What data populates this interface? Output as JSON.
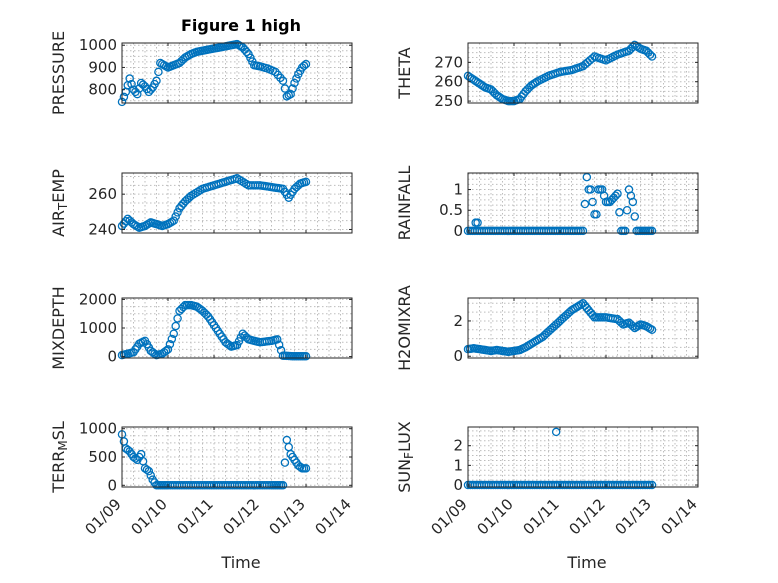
{
  "chart_data": [
    {
      "type": "scatter",
      "title": "Figure 1 high",
      "ylabel": "PRESSURE",
      "xlabel": "",
      "xlim": [
        "01/09",
        "01/14"
      ],
      "ylim": [
        740,
        1010
      ],
      "yticks": [
        800,
        900,
        1000
      ],
      "xticks": [],
      "grid": true,
      "marker_color": "#0072BD",
      "x": [
        "01/09 00:00",
        "01/09 02:00",
        "01/09 04:00",
        "01/09 06:00",
        "01/09 08:00",
        "01/09 10:00",
        "01/09 12:00",
        "01/09 14:00",
        "01/09 16:00",
        "01/09 18:00",
        "01/09 20:00",
        "01/09 22:00",
        "01/10 00:00",
        "01/10 03:00",
        "01/10 06:00",
        "01/10 09:00",
        "01/10 12:00",
        "01/10 15:00",
        "01/10 18:00",
        "01/10 21:00",
        "01/11 00:00",
        "01/11 03:00",
        "01/11 06:00",
        "01/11 09:00",
        "01/11 12:00",
        "01/11 15:00",
        "01/11 18:00",
        "01/11 21:00",
        "01/12 00:00",
        "01/12 04:00",
        "01/12 08:00",
        "01/12 12:00",
        "01/12 14:00",
        "01/12 16:00",
        "01/12 18:00",
        "01/12 20:00",
        "01/12 22:00",
        "01/13 00:00"
      ],
      "y": [
        745,
        790,
        850,
        800,
        780,
        830,
        815,
        790,
        810,
        840,
        920,
        910,
        900,
        910,
        920,
        945,
        960,
        970,
        975,
        980,
        985,
        990,
        995,
        1000,
        1005,
        990,
        960,
        910,
        905,
        895,
        880,
        840,
        770,
        780,
        830,
        870,
        900,
        915
      ]
    },
    {
      "type": "scatter",
      "title": "",
      "ylabel": "THETA",
      "xlabel": "",
      "xlim": [
        "01/09",
        "01/14"
      ],
      "ylim": [
        249,
        280
      ],
      "yticks": [
        250,
        260,
        270
      ],
      "xticks": [],
      "grid": true,
      "marker_color": "#0072BD",
      "x": [
        "01/09 00:00",
        "01/09 03:00",
        "01/09 06:00",
        "01/09 09:00",
        "01/09 12:00",
        "01/09 15:00",
        "01/09 18:00",
        "01/09 21:00",
        "01/10 00:00",
        "01/10 03:00",
        "01/10 06:00",
        "01/10 09:00",
        "01/10 12:00",
        "01/10 18:00",
        "01/11 00:00",
        "01/11 06:00",
        "01/11 12:00",
        "01/11 18:00",
        "01/12 00:00",
        "01/12 06:00",
        "01/12 12:00",
        "01/12 15:00",
        "01/12 18:00",
        "01/12 21:00",
        "01/13 00:00"
      ],
      "y": [
        263,
        261,
        259,
        257,
        256,
        253,
        251,
        250,
        250,
        251,
        255,
        258,
        260,
        263,
        265,
        266,
        268,
        273,
        271,
        274,
        276,
        279,
        277,
        276,
        273
      ]
    },
    {
      "type": "scatter",
      "title": "",
      "ylabel": "AIR_TEMP",
      "xlabel": "",
      "xlim": [
        "01/09",
        "01/14"
      ],
      "ylim": [
        238,
        272
      ],
      "yticks": [
        240,
        260
      ],
      "xticks": [],
      "grid": true,
      "marker_color": "#0072BD",
      "x": [
        "01/09 00:00",
        "01/09 03:00",
        "01/09 06:00",
        "01/09 09:00",
        "01/09 12:00",
        "01/09 15:00",
        "01/09 18:00",
        "01/09 21:00",
        "01/10 00:00",
        "01/10 03:00",
        "01/10 06:00",
        "01/10 09:00",
        "01/10 12:00",
        "01/10 18:00",
        "01/11 00:00",
        "01/11 06:00",
        "01/11 12:00",
        "01/11 18:00",
        "01/12 00:00",
        "01/12 06:00",
        "01/12 12:00",
        "01/12 15:00",
        "01/12 18:00",
        "01/12 21:00",
        "01/13 00:00"
      ],
      "y": [
        242,
        246,
        243,
        241,
        242,
        244,
        243,
        242,
        243,
        245,
        252,
        256,
        259,
        263,
        265,
        267,
        269,
        265,
        265,
        264,
        263,
        258,
        263,
        266,
        267
      ]
    },
    {
      "type": "scatter",
      "title": "",
      "ylabel": "RAINFALL",
      "xlabel": "",
      "xlim": [
        "01/09",
        "01/14"
      ],
      "ylim": [
        -0.05,
        1.4
      ],
      "yticks": [
        0,
        0.5,
        1
      ],
      "ytick_labels": [
        "0",
        "0.5",
        "1"
      ],
      "xticks": [],
      "grid": true,
      "marker_color": "#0072BD",
      "x": [
        "01/09 00:00",
        "01/09 06:00",
        "01/09 12:00",
        "01/09 18:00",
        "01/10 00:00",
        "01/10 06:00",
        "01/10 12:00",
        "01/10 18:00",
        "01/11 00:00",
        "01/11 06:00",
        "01/11 12:00",
        "01/11 14:00",
        "01/11 15:00",
        "01/11 16:00",
        "01/11 17:00",
        "01/11 18:00",
        "01/11 19:00",
        "01/11 20:00",
        "01/11 22:00",
        "01/12 00:00",
        "01/12 02:00",
        "01/12 04:00",
        "01/12 06:00",
        "01/12 08:00",
        "01/12 10:00",
        "01/12 12:00",
        "01/12 14:00",
        "01/12 16:00",
        "01/12 18:00",
        "01/12 20:00",
        "01/12 22:00",
        "01/13 00:00",
        "01/09 04:00",
        "01/09 05:00"
      ],
      "y": [
        0,
        0,
        0,
        0,
        0,
        0,
        0,
        0,
        0,
        0,
        0,
        1.3,
        1.0,
        1.0,
        0.7,
        0.4,
        0.4,
        1.0,
        1.0,
        0.7,
        0.7,
        0.8,
        0.9,
        0,
        0,
        1.0,
        0.7,
        0,
        0,
        0,
        0,
        0,
        0.2,
        0.2
      ]
    },
    {
      "type": "scatter",
      "title": "",
      "ylabel": "MIXDEPTH",
      "xlabel": "",
      "xlim": [
        "01/09",
        "01/14"
      ],
      "ylim": [
        -50,
        2050
      ],
      "yticks": [
        0,
        1000,
        2000
      ],
      "xticks": [],
      "grid": true,
      "marker_color": "#0072BD",
      "x": [
        "01/09 00:00",
        "01/09 03:00",
        "01/09 06:00",
        "01/09 09:00",
        "01/09 12:00",
        "01/09 15:00",
        "01/09 18:00",
        "01/09 21:00",
        "01/10 00:00",
        "01/10 03:00",
        "01/10 06:00",
        "01/10 09:00",
        "01/10 12:00",
        "01/10 15:00",
        "01/10 18:00",
        "01/10 21:00",
        "01/11 00:00",
        "01/11 03:00",
        "01/11 06:00",
        "01/11 09:00",
        "01/11 12:00",
        "01/11 15:00",
        "01/11 18:00",
        "01/11 21:00",
        "01/12 00:00",
        "01/12 06:00",
        "01/12 09:00",
        "01/12 12:00",
        "01/12 15:00",
        "01/12 18:00",
        "01/12 21:00",
        "01/13 00:00"
      ],
      "y": [
        50,
        100,
        150,
        450,
        550,
        200,
        50,
        100,
        250,
        800,
        1600,
        1800,
        1800,
        1750,
        1600,
        1400,
        1100,
        800,
        500,
        350,
        400,
        800,
        600,
        550,
        500,
        550,
        600,
        30,
        20,
        10,
        10,
        10
      ]
    },
    {
      "type": "scatter",
      "title": "",
      "ylabel": "H2OMIXRA",
      "xlabel": "",
      "xlim": [
        "01/09",
        "01/14"
      ],
      "ylim": [
        -0.1,
        3.3
      ],
      "yticks": [
        0,
        2
      ],
      "xticks": [],
      "grid": true,
      "marker_color": "#0072BD",
      "x": [
        "01/09 00:00",
        "01/09 03:00",
        "01/09 06:00",
        "01/09 09:00",
        "01/09 12:00",
        "01/09 15:00",
        "01/09 18:00",
        "01/09 21:00",
        "01/10 00:00",
        "01/10 03:00",
        "01/10 06:00",
        "01/10 09:00",
        "01/10 12:00",
        "01/10 15:00",
        "01/10 18:00",
        "01/10 21:00",
        "01/11 00:00",
        "01/11 03:00",
        "01/11 06:00",
        "01/11 09:00",
        "01/11 12:00",
        "01/11 15:00",
        "01/11 18:00",
        "01/11 21:00",
        "01/12 00:00",
        "01/12 06:00",
        "01/12 09:00",
        "01/12 12:00",
        "01/12 15:00",
        "01/12 18:00",
        "01/12 21:00",
        "01/13 00:00"
      ],
      "y": [
        0.4,
        0.45,
        0.4,
        0.35,
        0.3,
        0.35,
        0.3,
        0.25,
        0.3,
        0.35,
        0.5,
        0.7,
        0.9,
        1.1,
        1.4,
        1.7,
        2.0,
        2.3,
        2.6,
        2.8,
        3.0,
        2.6,
        2.2,
        2.2,
        2.2,
        2.1,
        1.8,
        1.9,
        1.6,
        1.8,
        1.7,
        1.5
      ]
    },
    {
      "type": "scatter",
      "title": "",
      "ylabel": "TERR_MSL",
      "xlabel": "Time",
      "xlim": [
        "01/09",
        "01/14"
      ],
      "ylim": [
        -30,
        1030
      ],
      "yticks": [
        0,
        500,
        1000
      ],
      "xticks": [
        "01/09",
        "01/10",
        "01/11",
        "01/12",
        "01/13",
        "01/14"
      ],
      "grid": true,
      "marker_color": "#0072BD",
      "x": [
        "01/09 00:00",
        "01/09 02:00",
        "01/09 04:00",
        "01/09 06:00",
        "01/09 08:00",
        "01/09 10:00",
        "01/09 12:00",
        "01/09 14:00",
        "01/09 16:00",
        "01/09 18:00",
        "01/09 20:00",
        "01/09 22:00",
        "01/10 00:00",
        "01/10 06:00",
        "01/10 12:00",
        "01/10 18:00",
        "01/11 00:00",
        "01/11 06:00",
        "01/11 12:00",
        "01/11 18:00",
        "01/12 00:00",
        "01/12 06:00",
        "01/12 09:00",
        "01/12 12:00",
        "01/12 14:00",
        "01/12 16:00",
        "01/12 18:00",
        "01/12 20:00",
        "01/12 22:00",
        "01/13 00:00"
      ],
      "y": [
        900,
        650,
        600,
        500,
        450,
        550,
        300,
        250,
        100,
        0,
        0,
        0,
        0,
        0,
        0,
        0,
        0,
        0,
        0,
        0,
        0,
        0,
        0,
        0,
        800,
        550,
        450,
        350,
        300,
        300
      ]
    },
    {
      "type": "scatter",
      "title": "",
      "ylabel": "SUN_FLUX",
      "xlabel": "Time",
      "xlim": [
        "01/09",
        "01/14"
      ],
      "ylim": [
        -0.1,
        2.95
      ],
      "yticks": [
        0,
        1,
        2
      ],
      "xticks": [
        "01/09",
        "01/10",
        "01/11",
        "01/12",
        "01/13",
        "01/14"
      ],
      "grid": true,
      "marker_color": "#0072BD",
      "x": [
        "01/09 00:00",
        "01/09 06:00",
        "01/09 12:00",
        "01/09 18:00",
        "01/10 00:00",
        "01/10 06:00",
        "01/10 12:00",
        "01/10 18:00",
        "01/11 00:00",
        "01/11 06:00",
        "01/11 12:00",
        "01/11 18:00",
        "01/12 00:00",
        "01/12 06:00",
        "01/12 12:00",
        "01/12 18:00",
        "01/13 00:00",
        "01/10 22:00"
      ],
      "y": [
        0,
        0,
        0,
        0,
        0,
        0,
        0,
        0,
        0,
        0,
        0,
        0,
        0,
        0,
        0,
        0,
        0,
        2.7
      ]
    }
  ]
}
